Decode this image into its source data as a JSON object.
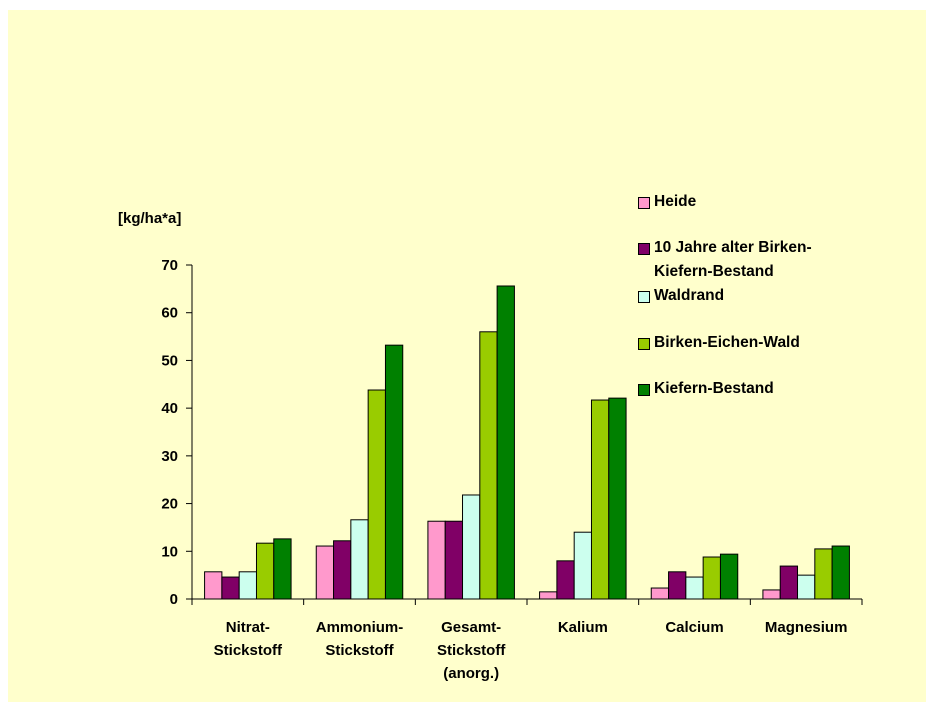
{
  "chart_data": {
    "type": "bar",
    "ylabel": "[kg/ha*a]",
    "categories": [
      [
        "Nitrat-",
        "Stickstoff"
      ],
      [
        "Ammonium-",
        "Stickstoff"
      ],
      [
        "Gesamt-",
        "Stickstoff",
        "(anorg.)"
      ],
      [
        "Kalium"
      ],
      [
        "Calcium"
      ],
      [
        "Magnesium"
      ]
    ],
    "series": [
      {
        "name": "Heide",
        "color": "#ff99cc",
        "values": [
          5.7,
          11.1,
          16.3,
          1.5,
          2.3,
          1.9
        ]
      },
      {
        "name": "10 Jahre alter Birken-Kiefern-Bestand",
        "color": "#800066",
        "values": [
          4.6,
          12.2,
          16.3,
          8,
          5.7,
          6.9
        ]
      },
      {
        "name": "Waldrand",
        "color": "#ccffee",
        "values": [
          5.7,
          16.6,
          21.8,
          14,
          4.6,
          5
        ]
      },
      {
        "name": "Birken-Eichen-Wald",
        "color": "#99cc00",
        "values": [
          11.7,
          43.8,
          56,
          41.7,
          8.8,
          10.5
        ]
      },
      {
        "name": "Kiefern-Bestand",
        "color": "#008000",
        "values": [
          12.6,
          53.2,
          65.6,
          42.1,
          9.4,
          11.1
        ]
      }
    ],
    "ylim": [
      0,
      70
    ],
    "yticks": [
      0,
      10,
      20,
      30,
      40,
      50,
      60,
      70
    ]
  }
}
